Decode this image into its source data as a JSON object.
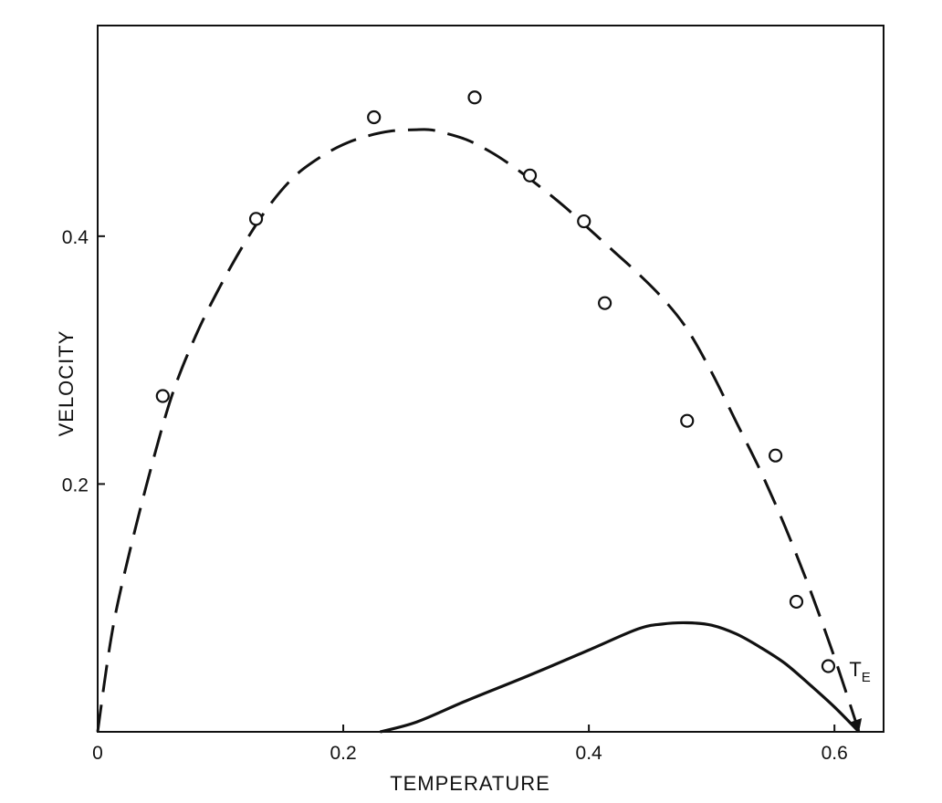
{
  "chart_data": {
    "type": "scatter",
    "title": "",
    "xlabel": "TEMPERATURE",
    "ylabel": "VELOCITY",
    "xlim": [
      0,
      0.64
    ],
    "ylim": [
      0,
      0.57
    ],
    "grid": false,
    "xticks": [
      {
        "value": 0,
        "label": "0"
      },
      {
        "value": 0.2,
        "label": "0.2"
      },
      {
        "value": 0.4,
        "label": "0.4"
      },
      {
        "value": 0.6,
        "label": "0.6"
      }
    ],
    "yticks": [
      {
        "value": 0.2,
        "label": "0.2"
      },
      {
        "value": 0.4,
        "label": "0.4"
      }
    ],
    "series": [
      {
        "style": "dashed-line",
        "x": [
          0,
          0.01,
          0.02,
          0.04,
          0.06,
          0.08,
          0.1,
          0.12,
          0.14,
          0.16,
          0.18,
          0.2,
          0.22,
          0.24,
          0.26,
          0.27,
          0.28,
          0.3,
          0.32,
          0.34,
          0.36,
          0.38,
          0.4,
          0.42,
          0.44,
          0.46,
          0.48,
          0.5,
          0.52,
          0.54,
          0.56,
          0.58,
          0.6,
          0.62
        ],
        "y": [
          0,
          0.07,
          0.12,
          0.2,
          0.27,
          0.32,
          0.36,
          0.395,
          0.425,
          0.448,
          0.463,
          0.474,
          0.481,
          0.485,
          0.486,
          0.486,
          0.484,
          0.478,
          0.468,
          0.455,
          0.44,
          0.424,
          0.406,
          0.388,
          0.37,
          0.35,
          0.325,
          0.29,
          0.25,
          0.21,
          0.165,
          0.115,
          0.06,
          0
        ]
      },
      {
        "style": "solid-line",
        "x": [
          0.23,
          0.26,
          0.3,
          0.35,
          0.4,
          0.44,
          0.46,
          0.48,
          0.5,
          0.52,
          0.54,
          0.56,
          0.58,
          0.6,
          0.62
        ],
        "y": [
          0.0,
          0.008,
          0.025,
          0.045,
          0.066,
          0.083,
          0.087,
          0.088,
          0.086,
          0.079,
          0.068,
          0.055,
          0.038,
          0.02,
          0
        ]
      },
      {
        "style": "open-circles",
        "x": [
          0.053,
          0.129,
          0.225,
          0.307,
          0.352,
          0.396,
          0.413,
          0.48,
          0.552,
          0.569,
          0.595
        ],
        "y": [
          0.271,
          0.414,
          0.496,
          0.512,
          0.449,
          0.412,
          0.346,
          0.251,
          0.223,
          0.105,
          0.053
        ]
      }
    ],
    "annotations": [
      {
        "text": "T",
        "subscript": "E",
        "x": 0.612,
        "y": 0.045
      }
    ]
  }
}
